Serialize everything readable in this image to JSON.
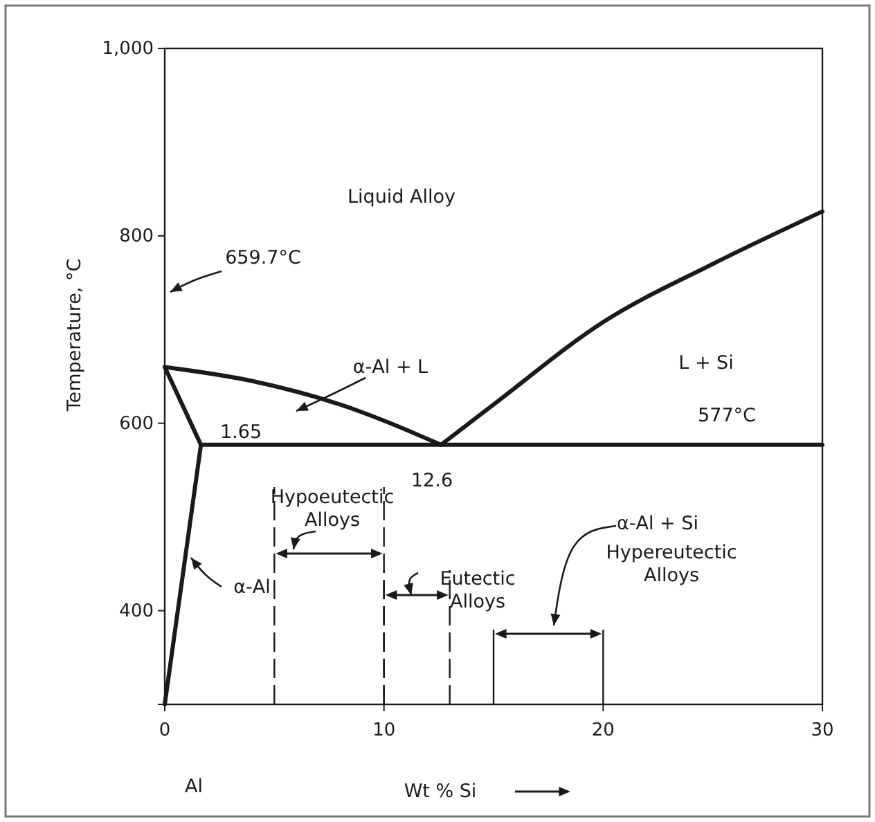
{
  "chart_data": {
    "type": "line",
    "xlabel": "Wt % Si",
    "ylabel": "Temperature, °C",
    "xlim": [
      0,
      30
    ],
    "ylim": [
      300,
      1000
    ],
    "xticks": [
      0,
      10,
      20,
      30
    ],
    "yticks": [
      400,
      600,
      800,
      {
        "value": 1000,
        "label": "1,000"
      }
    ],
    "grid": false,
    "marker": "none",
    "line_style": "solid",
    "series": [
      {
        "color": "#1a1a1a",
        "x": [
          0,
          4,
          8,
          12.6
        ],
        "values": [
          660,
          645,
          620,
          577
        ]
      },
      {
        "color": "#1a1a1a",
        "x": [
          12.6,
          15,
          20,
          25,
          30
        ],
        "values": [
          577,
          620,
          708,
          770,
          826
        ]
      },
      {
        "color": "#1a1a1a",
        "x": [
          1.65,
          30
        ],
        "values": [
          577,
          577
        ]
      },
      {
        "color": "#1a1a1a",
        "x": [
          0,
          1.65
        ],
        "values": [
          660,
          577
        ]
      },
      {
        "color": "#1a1a1a",
        "x": [
          0,
          1.65
        ],
        "values": [
          300,
          577
        ]
      }
    ],
    "annotations": [
      "Liquid Alloy",
      "L + Si",
      "α-Al + L",
      "α-Al + Si",
      "α-Al",
      "659.7°C",
      "1.65",
      "12.6",
      "577°C",
      "Hypoeutectic\nAlloys",
      "Eutectic\nAlloys",
      "Hypereutectic\nAlloys",
      "Al"
    ]
  }
}
